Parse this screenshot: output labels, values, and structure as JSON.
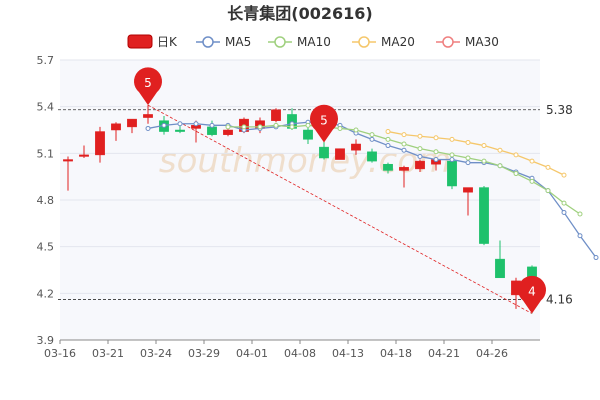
{
  "chart_data": {
    "type": "candlestick",
    "title": "长青集团(002616)",
    "watermark": "southmoney.com",
    "legend": [
      {
        "name": "日K",
        "color": "#e02020"
      },
      {
        "name": "MA5",
        "color": "#6f8fc7"
      },
      {
        "name": "MA10",
        "color": "#9fd07e"
      },
      {
        "name": "MA20",
        "color": "#f5c76b"
      },
      {
        "name": "MA30",
        "color": "#ef7f7f"
      }
    ],
    "ylim": [
      3.9,
      5.7
    ],
    "yticks": [
      "5.7",
      "5.4",
      "5.1",
      "4.8",
      "4.5",
      "4.2",
      "3.9"
    ],
    "xticks": [
      {
        "label": "03-16",
        "index": 0
      },
      {
        "label": "03-21",
        "index": 3
      },
      {
        "label": "03-24",
        "index": 6
      },
      {
        "label": "03-29",
        "index": 9
      },
      {
        "label": "04-01",
        "index": 12
      },
      {
        "label": "04-08",
        "index": 15
      },
      {
        "label": "04-13",
        "index": 18
      },
      {
        "label": "04-18",
        "index": 21
      },
      {
        "label": "04-21",
        "index": 24
      },
      {
        "label": "04-26",
        "index": 27
      }
    ],
    "up_color": "#e02020",
    "down_color": "#1ec16b",
    "candles": [
      {
        "o": 5.05,
        "h": 5.08,
        "l": 4.86,
        "c": 5.06
      },
      {
        "o": 5.08,
        "h": 5.15,
        "l": 5.07,
        "c": 5.09
      },
      {
        "o": 5.09,
        "h": 5.27,
        "l": 5.04,
        "c": 5.24
      },
      {
        "o": 5.25,
        "h": 5.3,
        "l": 5.18,
        "c": 5.29
      },
      {
        "o": 5.27,
        "h": 5.32,
        "l": 5.23,
        "c": 5.32
      },
      {
        "o": 5.33,
        "h": 5.41,
        "l": 5.29,
        "c": 5.35
      },
      {
        "o": 5.31,
        "h": 5.34,
        "l": 5.22,
        "c": 5.24
      },
      {
        "o": 5.25,
        "h": 5.3,
        "l": 5.23,
        "c": 5.24
      },
      {
        "o": 5.26,
        "h": 5.31,
        "l": 5.17,
        "c": 5.28
      },
      {
        "o": 5.27,
        "h": 5.31,
        "l": 5.21,
        "c": 5.22
      },
      {
        "o": 5.22,
        "h": 5.28,
        "l": 5.21,
        "c": 5.25
      },
      {
        "o": 5.24,
        "h": 5.33,
        "l": 5.23,
        "c": 5.32
      },
      {
        "o": 5.26,
        "h": 5.33,
        "l": 5.23,
        "c": 5.31
      },
      {
        "o": 5.31,
        "h": 5.39,
        "l": 5.3,
        "c": 5.38
      },
      {
        "o": 5.35,
        "h": 5.39,
        "l": 5.25,
        "c": 5.26
      },
      {
        "o": 5.25,
        "h": 5.28,
        "l": 5.16,
        "c": 5.19
      },
      {
        "o": 5.14,
        "h": 5.19,
        "l": 5.06,
        "c": 5.07
      },
      {
        "o": 5.06,
        "h": 5.13,
        "l": 5.06,
        "c": 5.13
      },
      {
        "o": 5.12,
        "h": 5.19,
        "l": 5.09,
        "c": 5.16
      },
      {
        "o": 5.11,
        "h": 5.13,
        "l": 5.04,
        "c": 5.05
      },
      {
        "o": 5.03,
        "h": 5.04,
        "l": 4.97,
        "c": 4.99
      },
      {
        "o": 4.99,
        "h": 5.02,
        "l": 4.88,
        "c": 5.01
      },
      {
        "o": 5.0,
        "h": 5.06,
        "l": 4.98,
        "c": 5.05
      },
      {
        "o": 5.03,
        "h": 5.06,
        "l": 4.99,
        "c": 5.06
      },
      {
        "o": 5.05,
        "h": 5.07,
        "l": 4.87,
        "c": 4.89
      },
      {
        "o": 4.85,
        "h": 4.87,
        "l": 4.7,
        "c": 4.88
      },
      {
        "o": 4.88,
        "h": 4.89,
        "l": 4.51,
        "c": 4.52
      },
      {
        "o": 4.42,
        "h": 4.54,
        "l": 4.3,
        "c": 4.3
      },
      {
        "o": 4.19,
        "h": 4.3,
        "l": 4.1,
        "c": 4.28
      },
      {
        "o": 4.37,
        "h": 4.38,
        "l": 4.07,
        "c": 4.15
      }
    ],
    "ma": {
      "MA5": {
        "start": 5,
        "values": [
          5.26,
          5.28,
          5.29,
          5.29,
          5.28,
          5.28,
          5.25,
          5.26,
          5.27,
          5.29,
          5.3,
          5.3,
          5.28,
          5.23,
          5.19,
          5.15,
          5.12,
          5.08,
          5.06,
          5.06,
          5.04,
          5.04,
          5.02,
          4.98,
          4.94,
          4.86,
          4.72,
          4.57,
          4.43
        ]
      },
      "MA10": {
        "start": 10,
        "values": [
          5.27,
          5.27,
          5.27,
          5.28,
          5.27,
          5.28,
          5.27,
          5.26,
          5.25,
          5.22,
          5.19,
          5.16,
          5.13,
          5.11,
          5.09,
          5.07,
          5.05,
          5.02,
          4.97,
          4.92,
          4.86,
          4.78,
          4.71
        ]
      },
      "MA20": {
        "start": 20,
        "values": [
          5.24,
          5.22,
          5.21,
          5.2,
          5.19,
          5.17,
          5.15,
          5.12,
          5.09,
          5.05,
          5.01,
          4.96
        ]
      }
    },
    "markers": [
      {
        "label": "5",
        "index": 5,
        "value": 5.41,
        "color": "#e02020"
      },
      {
        "label": "5",
        "index": 16,
        "value": 5.17,
        "color": "#e02020"
      },
      {
        "label": "4",
        "index": 29,
        "value": 4.07,
        "color": "#e02020"
      }
    ],
    "ref_lines": [
      {
        "value": 5.38,
        "label": "5.38"
      },
      {
        "value": 4.16,
        "label": "4.16"
      }
    ],
    "trend_line": {
      "from": {
        "index": 5,
        "value": 5.41
      },
      "to": {
        "index": 29,
        "value": 4.07
      }
    }
  }
}
